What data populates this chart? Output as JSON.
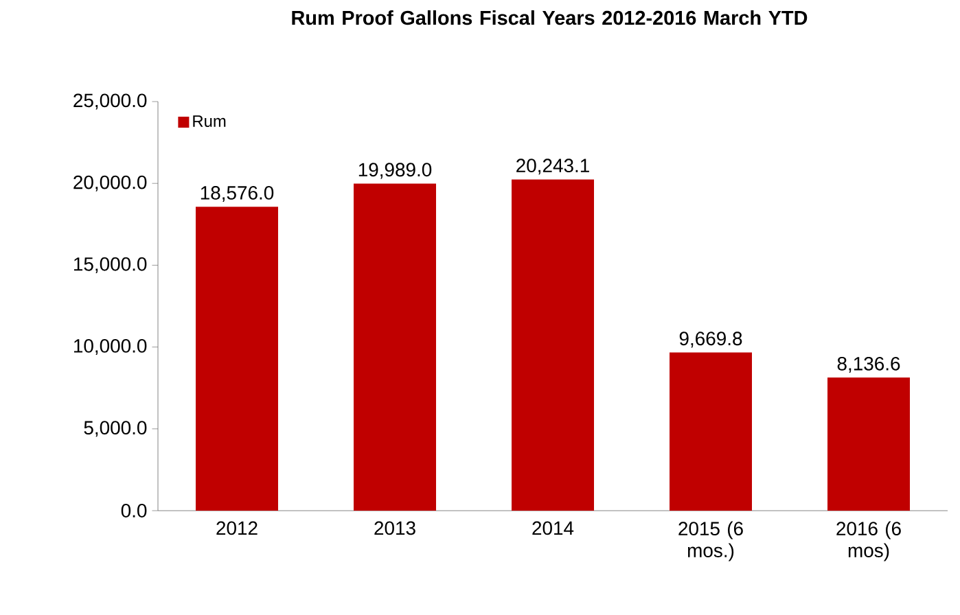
{
  "chart_data": {
    "type": "bar",
    "title": "Rum Proof Gallons Fiscal Years 2012-2016 March YTD",
    "categories": [
      "2012",
      "2013",
      "2014",
      "2015 (6 mos.)",
      "2016 (6 mos)"
    ],
    "series": [
      {
        "name": "Rum",
        "color": "#c00000",
        "values": [
          18576.0,
          19989.0,
          20243.1,
          9669.8,
          8136.6
        ],
        "value_labels": [
          "18,576.0",
          "19,989.0",
          "20,243.1",
          "9,669.8",
          "8,136.6"
        ]
      }
    ],
    "ylim": [
      0,
      25000
    ],
    "yticks": [
      {
        "value": 0,
        "label": "0.0"
      },
      {
        "value": 5000,
        "label": "5,000.0"
      },
      {
        "value": 10000,
        "label": "10,000.0"
      },
      {
        "value": 15000,
        "label": "15,000.0"
      },
      {
        "value": 20000,
        "label": "20,000.0"
      },
      {
        "value": 25000,
        "label": "25,000.0"
      }
    ],
    "legend": "top left",
    "grid": false
  }
}
